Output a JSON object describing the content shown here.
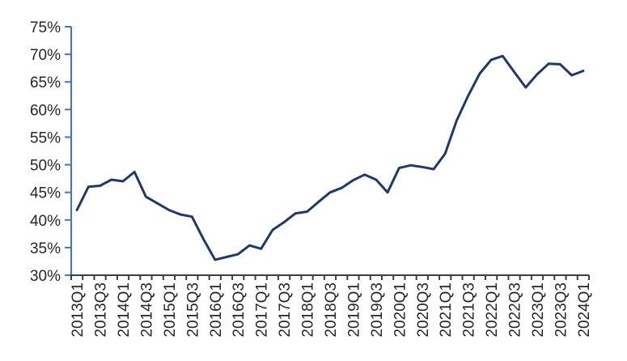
{
  "chart_data": {
    "type": "line",
    "title": "",
    "xlabel": "",
    "ylabel": "",
    "x": [
      "2013Q1",
      "2013Q2",
      "2013Q3",
      "2013Q4",
      "2014Q1",
      "2014Q2",
      "2014Q3",
      "2014Q4",
      "2015Q1",
      "2015Q2",
      "2015Q3",
      "2015Q4",
      "2016Q1",
      "2016Q2",
      "2016Q3",
      "2016Q4",
      "2017Q1",
      "2017Q2",
      "2017Q3",
      "2017Q4",
      "2018Q1",
      "2018Q2",
      "2018Q3",
      "2018Q4",
      "2019Q1",
      "2019Q2",
      "2019Q3",
      "2019Q4",
      "2020Q1",
      "2020Q2",
      "2020Q3",
      "2020Q4",
      "2021Q1",
      "2021Q2",
      "2021Q3",
      "2021Q4",
      "2022Q1",
      "2022Q2",
      "2022Q3",
      "2022Q4",
      "2023Q1",
      "2023Q2",
      "2023Q3",
      "2023Q4",
      "2024Q1"
    ],
    "values": [
      41.8,
      46.0,
      46.2,
      47.3,
      47.0,
      48.7,
      44.2,
      43.0,
      41.8,
      41.0,
      40.6,
      36.5,
      32.8,
      33.3,
      33.8,
      35.4,
      34.8,
      38.2,
      39.6,
      41.2,
      41.5,
      43.3,
      45.0,
      45.8,
      47.2,
      48.2,
      47.3,
      45.0,
      49.4,
      49.9,
      49.6,
      49.2,
      52.0,
      58.0,
      62.5,
      66.5,
      69.0,
      69.7,
      66.8,
      64.0,
      66.4,
      68.3,
      68.2,
      66.2,
      67.0
    ],
    "ylim": [
      30,
      75
    ],
    "ytick_step": 5,
    "ytick_suffix": "%",
    "ytick_labels": [
      "75%",
      "70%",
      "65%",
      "60%",
      "55%",
      "50%",
      "45%",
      "40%",
      "35%",
      "30%"
    ],
    "x_label_every": 2,
    "grid": "off",
    "legend": "none",
    "line_color": "#1f3a68",
    "line_width": 3,
    "y_axis_color": "#4472c4",
    "x_axis_color": "#3f3f3f",
    "label_color": "#262626"
  }
}
